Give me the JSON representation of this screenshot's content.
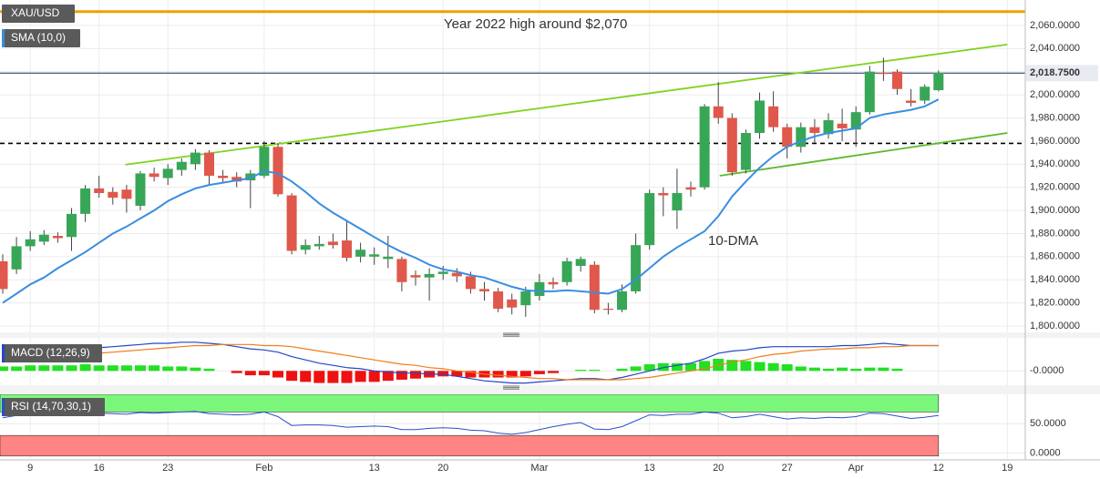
{
  "chart_data": [
    {
      "type": "candlestick",
      "categories": [
        null,
        null,
        "9",
        null,
        null,
        null,
        null,
        "16",
        null,
        null,
        null,
        null,
        "23",
        null,
        null,
        null,
        null,
        null,
        null,
        "Feb",
        null,
        null,
        null,
        null,
        null,
        null,
        null,
        "13",
        null,
        null,
        null,
        null,
        "20",
        null,
        null,
        null,
        null,
        null,
        null,
        "Mar",
        null,
        null,
        null,
        null,
        null,
        null,
        null,
        "13",
        null,
        null,
        null,
        null,
        "20",
        null,
        null,
        null,
        null,
        "27",
        null,
        null,
        null,
        null,
        "Apr",
        null,
        null,
        null,
        null,
        null,
        "12",
        null,
        null,
        null,
        null,
        "19",
        null
      ],
      "series": [
        {
          "name": "XAU/USD",
          "up_color": "#38a657",
          "down_color": "#e0584b",
          "open": [
            1856,
            1849,
            1869,
            1873,
            1878,
            1877,
            1897,
            1919,
            1916,
            1918,
            1904,
            1932,
            1928,
            1935,
            1940,
            1950,
            1930,
            1929,
            1926,
            1930,
            1955,
            1913,
            1866,
            1869,
            1873,
            1874,
            1860,
            1860,
            1858,
            1858,
            1844,
            1842,
            1845,
            1846,
            1843,
            1832,
            1830,
            1823,
            1818,
            1826,
            1838,
            1838,
            1852,
            1853,
            1815,
            1814,
            1830,
            1870,
            1915,
            1900,
            1920,
            1920,
            1990,
            1980,
            1935,
            1967,
            1990,
            1972,
            1955,
            1972,
            1966,
            1975,
            1970,
            1985,
            2019,
            2020,
            1995,
            1995,
            2004,
            null,
            null,
            null,
            null,
            null,
            null
          ],
          "high": [
            1862,
            1877,
            1882,
            1883,
            1881,
            1902,
            1922,
            1930,
            1920,
            1922,
            1934,
            1937,
            1940,
            1945,
            1953,
            1952,
            1935,
            1933,
            1935,
            1960,
            1958,
            1915,
            1875,
            1878,
            1880,
            1891,
            1872,
            1868,
            1878,
            1860,
            1848,
            1850,
            1852,
            1850,
            1847,
            1838,
            1833,
            1828,
            1834,
            1845,
            1842,
            1859,
            1860,
            1856,
            1820,
            1836,
            1880,
            1918,
            1920,
            1936,
            1925,
            1992,
            2011,
            1984,
            1970,
            2002,
            2003,
            1975,
            1976,
            1979,
            1984,
            1988,
            1990,
            2025,
            2032,
            2022,
            2005,
            2009,
            2021,
            null,
            null,
            null,
            null,
            null,
            null
          ],
          "low": [
            1828,
            1845,
            1865,
            1870,
            1872,
            1865,
            1890,
            1911,
            1905,
            1898,
            1900,
            1925,
            1922,
            1930,
            1935,
            1922,
            1924,
            1920,
            1902,
            1928,
            1912,
            1862,
            1862,
            1866,
            1867,
            1856,
            1855,
            1853,
            1850,
            1830,
            1835,
            1822,
            1840,
            1838,
            1828,
            1822,
            1812,
            1810,
            1808,
            1822,
            1832,
            1835,
            1847,
            1811,
            1810,
            1812,
            1828,
            1866,
            1895,
            1884,
            1912,
            1918,
            1975,
            1930,
            1932,
            1962,
            1968,
            1945,
            1950,
            1958,
            1962,
            1960,
            1955,
            1983,
            2012,
            2000,
            1990,
            1992,
            2003,
            null,
            null,
            null,
            null,
            null,
            null
          ],
          "close": [
            1832,
            1869,
            1875,
            1879,
            1876,
            1897,
            1919,
            1915,
            1911,
            1910,
            1932,
            1929,
            1936,
            1942,
            1950,
            1930,
            1928,
            1925,
            1932,
            1955,
            1914,
            1865,
            1870,
            1871,
            1870,
            1859,
            1866,
            1862,
            1860,
            1838,
            1842,
            1845,
            1847,
            1843,
            1832,
            1830,
            1815,
            1816,
            1830,
            1838,
            1836,
            1856,
            1858,
            1814,
            1814,
            1830,
            1870,
            1915,
            1913,
            1915,
            1918,
            1990,
            1980,
            1933,
            1967,
            1995,
            1972,
            1955,
            1972,
            1967,
            1978,
            1971,
            1985,
            2020,
            2018,
            2005,
            1993,
            2007,
            2019,
            null,
            null,
            null,
            null,
            null,
            null
          ]
        },
        {
          "name": "SMA (10,0)",
          "color": "#3a8ee0",
          "values": [
            1820,
            1828,
            1836,
            1842,
            1850,
            1857,
            1864,
            1872,
            1880,
            1886,
            1893,
            1900,
            1908,
            1914,
            1919,
            1922,
            1924,
            1926,
            1928,
            1934,
            1932,
            1925,
            1916,
            1906,
            1898,
            1891,
            1884,
            1877,
            1870,
            1864,
            1859,
            1853,
            1849,
            1847,
            1844,
            1842,
            1838,
            1834,
            1831,
            1830,
            1830,
            1831,
            1830,
            1829,
            1828,
            1832,
            1840,
            1850,
            1860,
            1868,
            1875,
            1882,
            1895,
            1912,
            1925,
            1937,
            1947,
            1955,
            1960,
            1964,
            1967,
            1969,
            1971,
            1980,
            1983,
            1985,
            1987,
            1990,
            1996,
            null,
            null,
            null,
            null,
            null,
            null
          ]
        }
      ],
      "ylim": [
        1794.5,
        2082
      ],
      "yticks": [
        {
          "value": 1800,
          "label": "1,800.0000"
        },
        {
          "value": 1820,
          "label": "1,820.0000"
        },
        {
          "value": 1840,
          "label": "1,840.0000"
        },
        {
          "value": 1860,
          "label": "1,860.0000"
        },
        {
          "value": 1880,
          "label": "1,880.0000"
        },
        {
          "value": 1900,
          "label": "1,900.0000"
        },
        {
          "value": 1920,
          "label": "1,920.0000"
        },
        {
          "value": 1940,
          "label": "1,940.0000"
        },
        {
          "value": 1960,
          "label": "1,960.0000"
        },
        {
          "value": 1980,
          "label": "1,980.0000"
        },
        {
          "value": 2000,
          "label": "2,000.0000"
        },
        {
          "value": 2020,
          "label": "2,020.0000"
        },
        {
          "value": 2040,
          "label": "2,040.0000"
        },
        {
          "value": 2060,
          "label": "2,060.0000"
        }
      ],
      "grid": true,
      "price_line": {
        "value": 2018.75,
        "label": "2,018.7500",
        "color": "#1c2f5e"
      },
      "reference_lines": [
        {
          "value": 2072,
          "color": "#f0a000",
          "style": "solid"
        },
        {
          "value": 1958,
          "color": "#000000",
          "style": "dashed"
        }
      ],
      "trendlines": [
        {
          "x": [
            8.9,
            73
          ],
          "y": [
            1939.5,
            2043.5
          ],
          "color": "#7ed321"
        },
        {
          "x": [
            52.1,
            73
          ],
          "y": [
            1930,
            1967
          ],
          "color": "#5cb82e"
        }
      ],
      "annotations": [
        {
          "text": "Year 2022 high around $2,070",
          "color": "#f0a000"
        },
        {
          "text": "10-DMA",
          "color": "#3a8ee0"
        }
      ]
    },
    {
      "type": "macd",
      "title": "MACD (12,26,9)",
      "series": [
        {
          "kind": "line",
          "color": "#2446c8",
          "values": [
            12,
            13,
            15,
            16,
            17,
            18,
            20,
            21,
            22,
            23,
            24,
            25,
            25,
            26,
            26,
            25,
            24,
            22,
            20,
            19,
            17,
            13,
            10,
            7,
            5,
            3,
            2,
            0,
            -1,
            -2,
            -2,
            -3,
            -3,
            -5,
            -7,
            -9,
            -10,
            -11,
            -11,
            -10,
            -9,
            -8,
            -7,
            -7,
            -8,
            -6,
            -3,
            0,
            3,
            5,
            7,
            11,
            16,
            18,
            19,
            21,
            22,
            22,
            22,
            22,
            22,
            23,
            23,
            24,
            25,
            24,
            23,
            23,
            23,
            null,
            null,
            null,
            null,
            null,
            null
          ]
        },
        {
          "kind": "line",
          "color": "#f07d1a",
          "values": [
            8,
            9,
            10,
            11,
            12,
            13,
            14,
            16,
            17,
            18,
            19,
            20,
            21,
            22,
            23,
            23,
            24,
            24,
            24,
            23,
            23,
            22,
            20,
            18,
            16,
            14,
            12,
            10,
            8,
            6,
            5,
            3,
            2,
            0,
            -1,
            -3,
            -4,
            -5,
            -6,
            -7,
            -7,
            -8,
            -8,
            -8,
            -8,
            -8,
            -7,
            -6,
            -4,
            -2,
            0,
            2,
            5,
            8,
            10,
            13,
            15,
            16,
            18,
            19,
            20,
            20,
            21,
            21,
            22,
            22,
            23,
            23,
            23,
            null,
            null,
            null,
            null,
            null,
            null
          ]
        },
        {
          "kind": "histogram",
          "up_color": "#22e022",
          "down_color": "#ee1111",
          "values": [
            4,
            4,
            5,
            5,
            5,
            5,
            6,
            5,
            5,
            5,
            5,
            5,
            4,
            4,
            3,
            2,
            0,
            -2,
            -4,
            -4,
            -6,
            -9,
            -10,
            -11,
            -11,
            -11,
            -10,
            -10,
            -9,
            -8,
            -7,
            -6,
            -5,
            -5,
            -6,
            -6,
            -6,
            -6,
            -5,
            -3,
            -2,
            0,
            1,
            1,
            0,
            2,
            4,
            6,
            7,
            7,
            7,
            9,
            11,
            10,
            9,
            8,
            7,
            6,
            4,
            3,
            2,
            3,
            2,
            3,
            3,
            2,
            0,
            0,
            0,
            null,
            null,
            null,
            null,
            null,
            null
          ]
        }
      ],
      "ylim": [
        -13,
        30
      ],
      "yticks": [
        {
          "value": 0,
          "label": "-0.0000"
        }
      ]
    },
    {
      "type": "rsi",
      "title": "RSI (14,70,30,1)",
      "series": [
        {
          "color": "#2a50c8",
          "values": [
            60,
            64,
            66,
            67,
            66,
            68,
            70,
            68,
            67,
            66,
            69,
            68,
            69,
            70,
            71,
            67,
            66,
            65,
            66,
            70,
            62,
            47,
            48,
            48,
            47,
            44,
            45,
            46,
            45,
            40,
            40,
            42,
            43,
            42,
            39,
            38,
            34,
            32,
            35,
            40,
            45,
            49,
            52,
            41,
            40,
            45,
            55,
            65,
            64,
            66,
            66,
            70,
            68,
            60,
            62,
            66,
            62,
            58,
            60,
            59,
            61,
            60,
            62,
            68,
            67,
            63,
            59,
            61,
            64,
            null,
            null,
            null,
            null,
            null,
            null
          ]
        }
      ],
      "zones": [
        {
          "range": [
            70,
            100
          ],
          "color": "#7af77a"
        },
        {
          "range": [
            -5,
            30
          ],
          "color": "#ff8484"
        }
      ],
      "ylim": [
        -10,
        100
      ],
      "yticks": [
        {
          "value": 50,
          "label": "50.0000"
        },
        {
          "value": 0,
          "label": "0.0000"
        }
      ]
    }
  ]
}
